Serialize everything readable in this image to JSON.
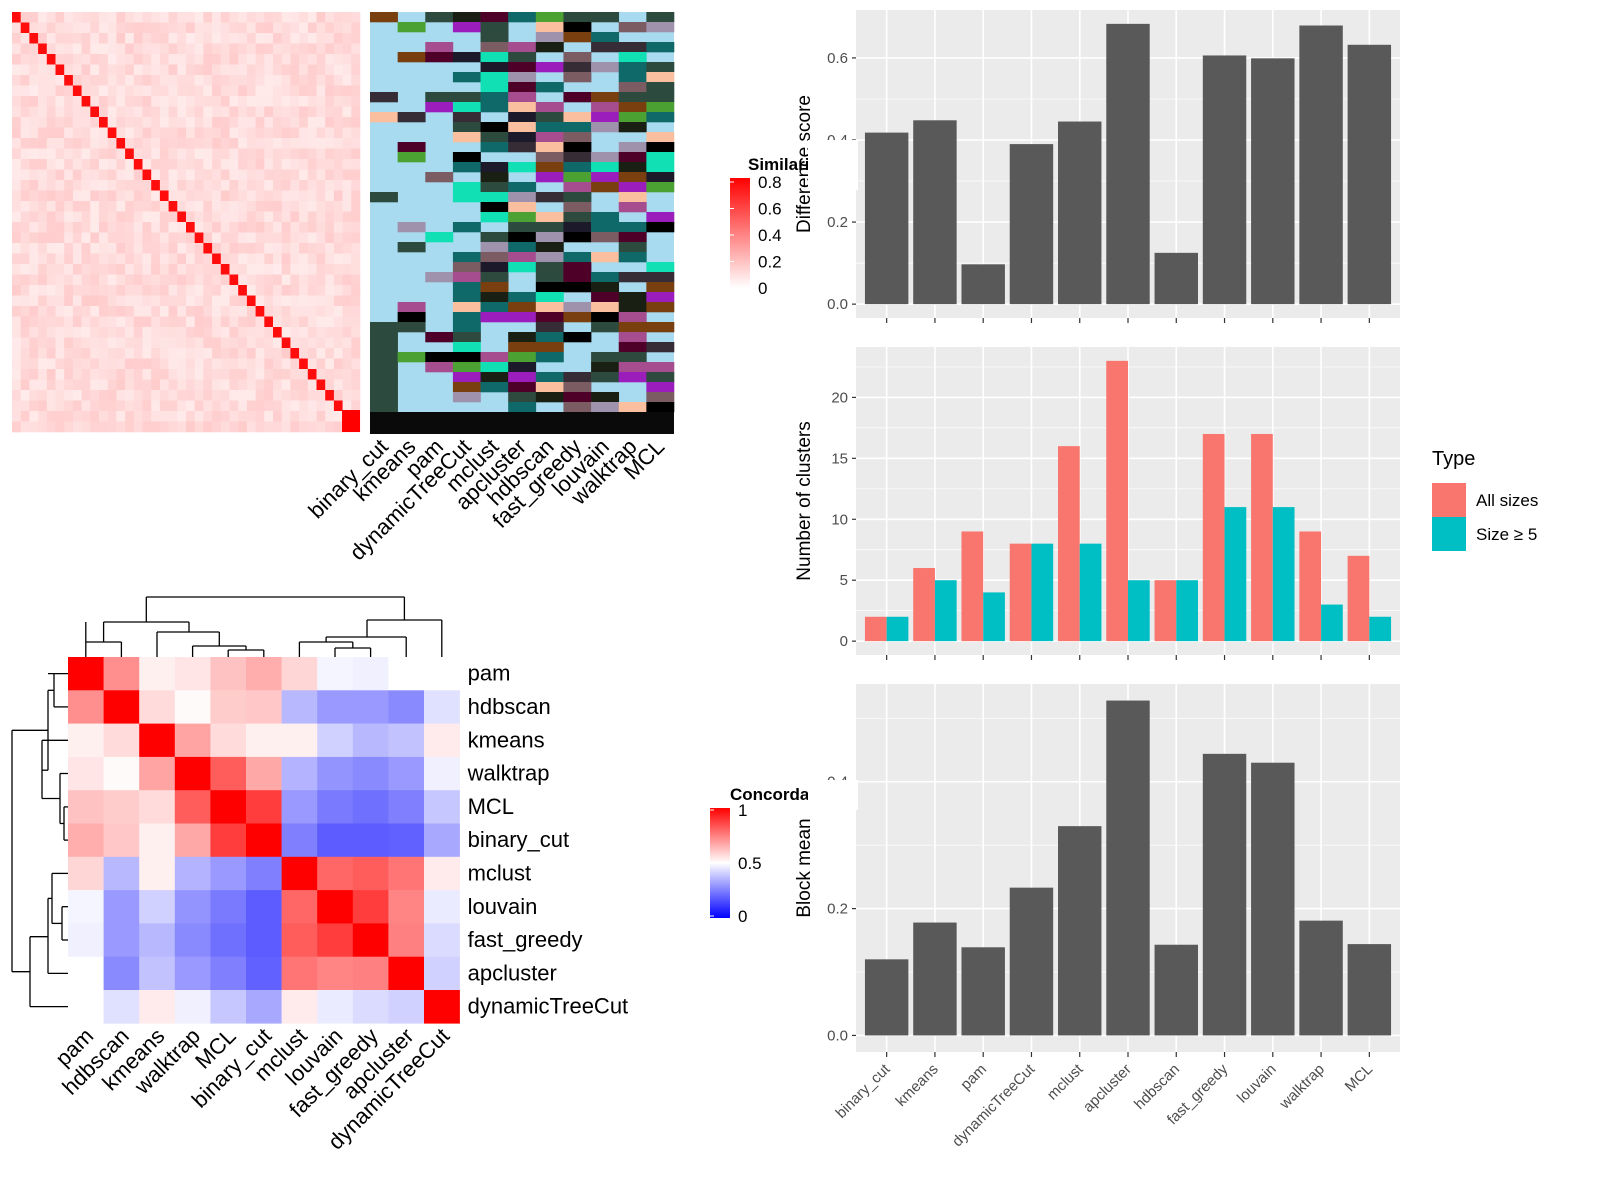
{
  "methods": [
    "binary_cut",
    "kmeans",
    "pam",
    "dynamicTreeCut",
    "mclust",
    "apcluster",
    "hdbscan",
    "fast_greedy",
    "louvain",
    "walktrap",
    "MCL"
  ],
  "similarity_legend": {
    "title": "Similarity",
    "ticks": [
      "0.8",
      "0.6",
      "0.4",
      "0.2",
      "0"
    ],
    "color_high": "#ff0000",
    "color_low": "#ffffff"
  },
  "concordance_legend": {
    "title": "Concordance",
    "ticks": [
      "1",
      "0.5",
      "0"
    ],
    "color_high": "#ff0000",
    "color_mid": "#ffffff",
    "color_low": "#0000ff"
  },
  "concordance_order": [
    "pam",
    "hdbscan",
    "kmeans",
    "walktrap",
    "MCL",
    "binary_cut",
    "mclust",
    "louvain",
    "fast_greedy",
    "apcluster",
    "dynamicTreeCut"
  ],
  "concordance_matrix": [
    [
      1.0,
      0.72,
      0.53,
      0.55,
      0.62,
      0.66,
      0.58,
      0.48,
      0.47,
      0.5,
      0.5
    ],
    [
      0.72,
      1.0,
      0.57,
      0.51,
      0.6,
      0.61,
      0.36,
      0.3,
      0.3,
      0.27,
      0.44
    ],
    [
      0.53,
      0.57,
      1.0,
      0.68,
      0.57,
      0.53,
      0.53,
      0.41,
      0.36,
      0.38,
      0.54
    ],
    [
      0.55,
      0.51,
      0.68,
      1.0,
      0.82,
      0.67,
      0.35,
      0.29,
      0.27,
      0.3,
      0.47
    ],
    [
      0.62,
      0.6,
      0.57,
      0.82,
      1.0,
      0.88,
      0.3,
      0.24,
      0.22,
      0.25,
      0.39
    ],
    [
      0.66,
      0.61,
      0.53,
      0.67,
      0.88,
      1.0,
      0.25,
      0.18,
      0.18,
      0.19,
      0.33
    ],
    [
      0.58,
      0.36,
      0.53,
      0.35,
      0.3,
      0.25,
      1.0,
      0.8,
      0.82,
      0.77,
      0.54
    ],
    [
      0.48,
      0.3,
      0.41,
      0.29,
      0.24,
      0.18,
      0.8,
      1.0,
      0.88,
      0.74,
      0.46
    ],
    [
      0.47,
      0.3,
      0.36,
      0.27,
      0.22,
      0.18,
      0.82,
      0.88,
      1.0,
      0.75,
      0.43
    ],
    [
      0.5,
      0.27,
      0.38,
      0.3,
      0.25,
      0.19,
      0.77,
      0.74,
      0.75,
      1.0,
      0.41
    ],
    [
      0.5,
      0.44,
      0.54,
      0.47,
      0.39,
      0.33,
      0.54,
      0.46,
      0.43,
      0.41,
      1.0
    ]
  ],
  "panel_colors": [
    "#a8dbef",
    "#7a3f0f",
    "#2d4a3e",
    "#f9bf9e",
    "#000000",
    "#2e4a3e",
    "#4ba232",
    "#352c36",
    "#0f6969",
    "#9f92ad",
    "#a64d8f",
    "#4e0029",
    "#9b1dbc",
    "#10e0b4",
    "#1a1f14",
    "#7a5c62",
    "#1c1a2a"
  ],
  "chart_data": [
    {
      "type": "bar",
      "title": "",
      "categories": [
        "binary_cut",
        "kmeans",
        "pam",
        "dynamicTreeCut",
        "mclust",
        "apcluster",
        "hdbscan",
        "fast_greedy",
        "louvain",
        "walktrap",
        "MCL"
      ],
      "values": [
        0.418,
        0.448,
        0.097,
        0.39,
        0.445,
        0.683,
        0.125,
        0.606,
        0.599,
        0.679,
        0.632
      ],
      "xlabel": "",
      "ylabel": "Difference score",
      "ylim": [
        0,
        0.683
      ],
      "yticks": [
        "0.0",
        "0.2",
        "0.4",
        "0.6"
      ],
      "bar_color": "#595959",
      "panel_bg": "#ebebeb",
      "grid": true
    },
    {
      "type": "bar",
      "title": "",
      "categories": [
        "binary_cut",
        "kmeans",
        "pam",
        "dynamicTreeCut",
        "mclust",
        "apcluster",
        "hdbscan",
        "fast_greedy",
        "louvain",
        "walktrap",
        "MCL"
      ],
      "series": [
        {
          "name": "All sizes",
          "values": [
            2,
            6,
            9,
            8,
            16,
            23,
            5,
            17,
            17,
            9,
            7
          ],
          "color": "#f8766d"
        },
        {
          "name": "Size ≥ 5",
          "values": [
            2,
            5,
            4,
            8,
            8,
            5,
            5,
            11,
            11,
            3,
            2
          ],
          "color": "#00bfc4"
        }
      ],
      "xlabel": "",
      "ylabel": "Number of clusters",
      "ylim": [
        0,
        23
      ],
      "yticks": [
        "0",
        "5",
        "10",
        "15",
        "20"
      ],
      "legend_title": "Type",
      "legend_position": "right",
      "panel_bg": "#ebebeb",
      "grid": true
    },
    {
      "type": "bar",
      "title": "",
      "categories": [
        "binary_cut",
        "kmeans",
        "pam",
        "dynamicTreeCut",
        "mclust",
        "apcluster",
        "hdbscan",
        "fast_greedy",
        "louvain",
        "walktrap",
        "MCL"
      ],
      "values": [
        0.12,
        0.178,
        0.139,
        0.233,
        0.33,
        0.528,
        0.143,
        0.444,
        0.43,
        0.181,
        0.144
      ],
      "xlabel": "",
      "ylabel": "Block mean",
      "ylim": [
        0,
        0.528
      ],
      "yticks": [
        "0.0",
        "0.2",
        "0.4"
      ],
      "bar_color": "#595959",
      "panel_bg": "#ebebeb",
      "grid": true
    }
  ]
}
